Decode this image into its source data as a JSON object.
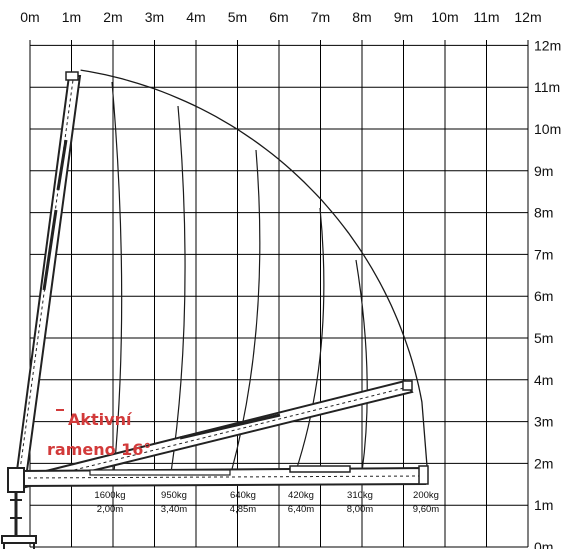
{
  "x_axis": {
    "unit": "m",
    "labels": [
      "0m",
      "1m",
      "2m",
      "3m",
      "4m",
      "5m",
      "6m",
      "7m",
      "8m",
      "9m",
      "10m",
      "11m",
      "12m"
    ]
  },
  "y_axis": {
    "unit": "m",
    "labels": [
      "0m",
      "1m",
      "2m",
      "3m",
      "4m",
      "5m",
      "6m",
      "7m",
      "8m",
      "9m",
      "10m",
      "11m",
      "12m"
    ]
  },
  "annotation": {
    "line1": "Aktivní",
    "line2": "rameno 16°",
    "color": "#d23a3a"
  },
  "load_zones": [
    {
      "load": "1600kg",
      "reach": "2,00m",
      "reach_m": 2.0
    },
    {
      "load": "950kg",
      "reach": "3,40m",
      "reach_m": 3.4
    },
    {
      "load": "640kg",
      "reach": "4,85m",
      "reach_m": 4.85
    },
    {
      "load": "420kg",
      "reach": "6,40m",
      "reach_m": 6.4
    },
    {
      "load": "310kg",
      "reach": "8,00m",
      "reach_m": 8.0
    },
    {
      "load": "200kg",
      "reach": "9,60m",
      "reach_m": 9.6
    }
  ],
  "colors": {
    "grid": "#000000",
    "curves": "#1a1a1a",
    "boom": "#222222"
  }
}
